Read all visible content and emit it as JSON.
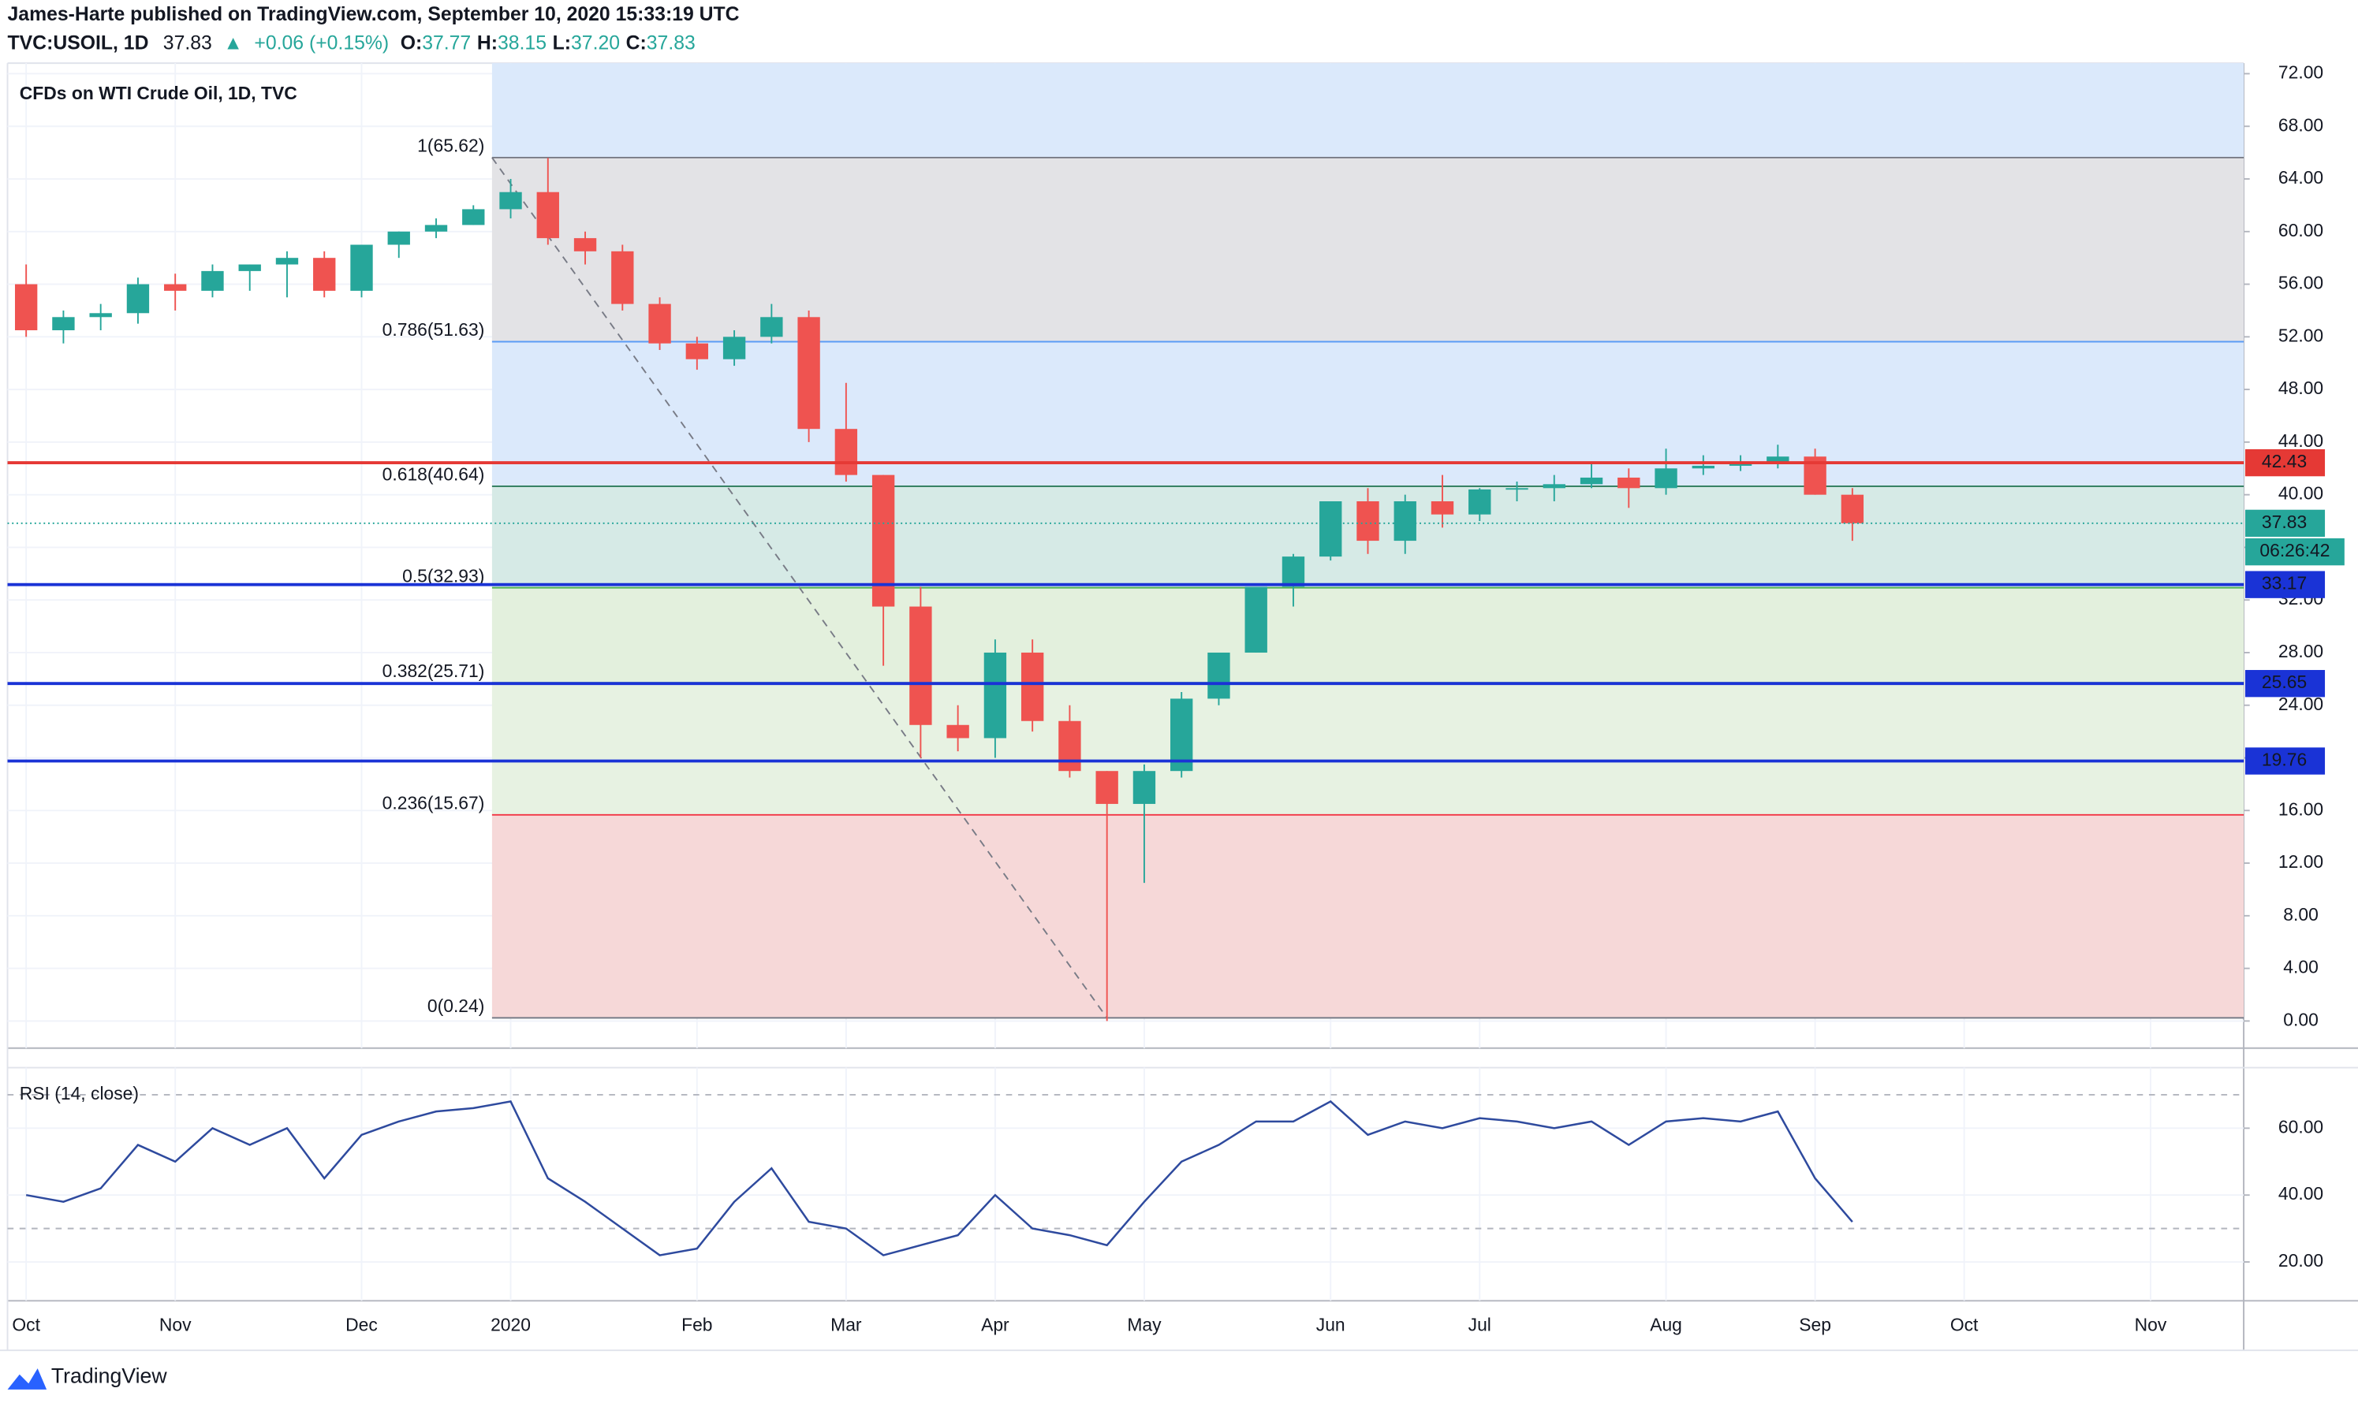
{
  "header": {
    "publisher": "James-Harte published on TradingView.com, September 10, 2020 15:33:19 UTC",
    "symbol": "TVC:USOIL, 1D",
    "last": "37.83",
    "arrow": "▲",
    "change": "+0.06 (+0.15%)",
    "ohlc": [
      {
        "key": "O:",
        "value": "37.77"
      },
      {
        "key": "H:",
        "value": "38.15"
      },
      {
        "key": "L:",
        "value": "37.20"
      },
      {
        "key": "C:",
        "value": "37.83"
      }
    ]
  },
  "footer": "TradingView",
  "chart_data": [
    {
      "type": "candlestick",
      "title": "CFDs on WTI Crude Oil, 1D, TVC",
      "categories": [
        "Oct",
        null,
        null,
        null,
        "Nov",
        null,
        null,
        null,
        null,
        "Dec",
        null,
        null,
        null,
        "2020",
        null,
        null,
        null,
        null,
        "Feb",
        null,
        null,
        null,
        "Mar",
        null,
        null,
        null,
        "Apr",
        null,
        null,
        null,
        "May",
        null,
        null,
        null,
        null,
        "Jun",
        null,
        null,
        null,
        "Jul",
        null,
        null,
        null,
        null,
        "Aug",
        null,
        null,
        null,
        "Sep",
        null,
        null,
        null,
        "Oct",
        null,
        null,
        null,
        null,
        "Nov",
        null,
        null
      ],
      "open": [
        56,
        52.5,
        53.5,
        53.8,
        56,
        55.5,
        57,
        57.5,
        58,
        55.5,
        59,
        60,
        60.5,
        61.7,
        63,
        59.5,
        58.5,
        54.5,
        51.5,
        50.3,
        52,
        53.5,
        45,
        41.5,
        31.5,
        22.5,
        21.5,
        28,
        22.8,
        19,
        16.5,
        19,
        24.5,
        28,
        33,
        35.3,
        39.5,
        36.5,
        39.5,
        38.5,
        40.4,
        40.5,
        40.8,
        41.3,
        40.5,
        42,
        42.2,
        42.5,
        42.9,
        40,
        null,
        null,
        null,
        null,
        null,
        null,
        null,
        null,
        null,
        null
      ],
      "high": [
        57.5,
        54,
        54.5,
        56.5,
        56.8,
        57.5,
        57.5,
        58.5,
        58.5,
        59,
        60,
        61,
        62,
        64,
        65.6,
        60,
        59,
        55,
        52,
        52.5,
        54.5,
        54,
        48.5,
        41.5,
        33,
        24,
        29,
        29,
        24,
        19,
        19.5,
        25,
        28,
        33,
        35.5,
        39.5,
        40.5,
        40,
        41.5,
        40.5,
        41,
        41.5,
        42.5,
        42,
        43.5,
        43,
        43,
        43.8,
        43.5,
        40.5,
        null,
        null,
        null,
        null,
        null,
        null,
        null,
        null,
        null,
        null
      ],
      "low": [
        52,
        51.5,
        52.5,
        53,
        54,
        55,
        55.5,
        55,
        55,
        55,
        58,
        59.5,
        60.5,
        61,
        59,
        57.5,
        54,
        51,
        49.5,
        49.8,
        51.5,
        44,
        41,
        27,
        20,
        20.5,
        20,
        22,
        18.5,
        0,
        10.5,
        18.5,
        24,
        28,
        31.5,
        35,
        35.5,
        35.5,
        37.5,
        38,
        39.5,
        39.5,
        40.5,
        39,
        40,
        41.5,
        41.8,
        42,
        40,
        36.5,
        null,
        null,
        null,
        null,
        null,
        null,
        null,
        null,
        null,
        null
      ],
      "close": [
        52.5,
        53.5,
        53.8,
        56,
        55.5,
        57,
        57.5,
        58,
        55.5,
        59,
        60,
        60.5,
        61.7,
        63,
        59.5,
        58.5,
        54.5,
        51.5,
        50.3,
        52,
        53.5,
        45,
        41.5,
        31.5,
        22.5,
        21.5,
        28,
        22.8,
        19,
        16.5,
        19,
        24.5,
        28,
        33,
        35.3,
        39.5,
        36.5,
        39.5,
        38.5,
        40.4,
        40.5,
        40.8,
        41.3,
        40.5,
        42,
        42.2,
        42.5,
        42.9,
        40,
        37.83,
        null,
        null,
        null,
        null,
        null,
        null,
        null,
        null,
        null,
        null
      ],
      "up_color": "#26a69a",
      "down_color": "#ef5350",
      "ylim": [
        -2.06,
        72.8
      ],
      "yticks": [
        {
          "value": 0,
          "label": "0.00"
        },
        {
          "value": 4,
          "label": "4.00"
        },
        {
          "value": 8,
          "label": "8.00"
        },
        {
          "value": 12,
          "label": "12.00"
        },
        {
          "value": 16,
          "label": "16.00"
        },
        {
          "value": 20,
          "label": "20.00"
        },
        {
          "value": 24,
          "label": "24.00"
        },
        {
          "value": 28,
          "label": "28.00"
        },
        {
          "value": 32,
          "label": "32.00"
        },
        {
          "value": 36,
          "label": "36.00"
        },
        {
          "value": 40,
          "label": "40.00"
        },
        {
          "value": 44,
          "label": "44.00"
        },
        {
          "value": 48,
          "label": "48.00"
        },
        {
          "value": 52,
          "label": "52.00"
        },
        {
          "value": 56,
          "label": "56.00"
        },
        {
          "value": 60,
          "label": "60.00"
        },
        {
          "value": 64,
          "label": "64.00"
        },
        {
          "value": 68,
          "label": "68.00"
        },
        {
          "value": 72,
          "label": "72.00"
        }
      ],
      "grid": true,
      "fib": {
        "fill_above": "#dbe9fb",
        "levels": [
          {
            "value": 65.62,
            "label": "1(65.62)",
            "color": "#787b86",
            "fill": "#e3e3e6"
          },
          {
            "value": 51.63,
            "label": "0.786(51.63)",
            "color": "#5b9cf6",
            "fill": "#dbe9fb"
          },
          {
            "value": 40.64,
            "label": "0.618(40.64)",
            "color": "#2a7a5a",
            "fill": "#d6eae6"
          },
          {
            "value": 32.93,
            "label": "0.5(32.93)",
            "color": "#4caf50",
            "fill": "#e3f0dd"
          },
          {
            "value": 25.71,
            "label": "0.382(25.71)",
            "color": "#66bb6a",
            "fill": "#e7f2e2"
          },
          {
            "value": 15.67,
            "label": "0.236(15.67)",
            "color": "#f23645",
            "fill": "#f6d8d8"
          },
          {
            "value": 0.24,
            "label": "0(0.24)",
            "color": "#787b86"
          }
        ]
      },
      "lines": [
        {
          "value": 42.43,
          "color": "#e53935"
        },
        {
          "value": 33.17,
          "color": "#1a33d6"
        },
        {
          "value": 25.65,
          "color": "#1a33d6"
        },
        {
          "value": 19.76,
          "color": "#1a33d6"
        }
      ],
      "current": {
        "value": 37.83,
        "countdown": "06:26:42",
        "color": "#26a69a"
      }
    },
    {
      "type": "line",
      "title": "RSI (14, close)",
      "color": "#2e4a9e",
      "values": [
        40,
        38,
        42,
        55,
        50,
        60,
        55,
        60,
        45,
        58,
        62,
        65,
        66,
        68,
        45,
        38,
        30,
        22,
        24,
        38,
        48,
        32,
        30,
        22,
        25,
        28,
        40,
        30,
        28,
        25,
        38,
        50,
        55,
        62,
        62,
        68,
        58,
        62,
        60,
        63,
        62,
        60,
        62,
        55,
        62,
        63,
        62,
        65,
        45,
        32,
        null,
        null,
        null,
        null,
        null,
        null,
        null,
        null,
        null,
        null
      ],
      "ylim": [
        8.4,
        78.1
      ],
      "yticks": [
        {
          "value": 20,
          "label": "20.00"
        },
        {
          "value": 40,
          "label": "40.00"
        },
        {
          "value": 60,
          "label": "60.00"
        }
      ],
      "bands": [
        70,
        30
      ]
    }
  ]
}
